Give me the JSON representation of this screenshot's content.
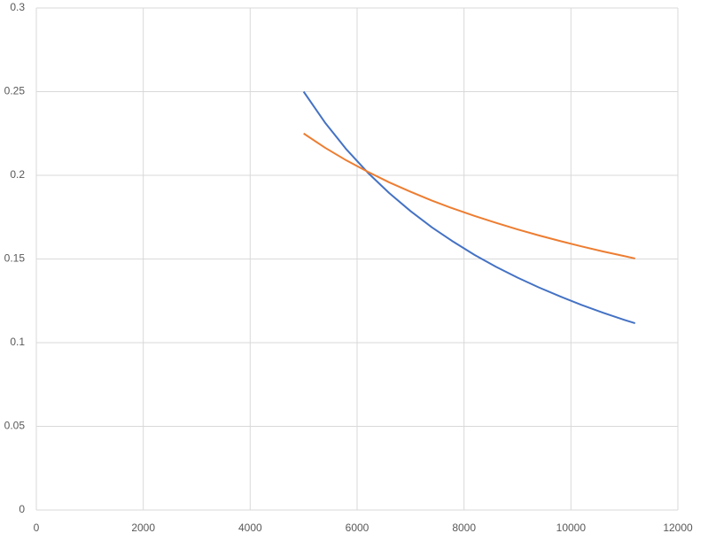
{
  "chart_data": {
    "type": "line",
    "x": [
      5000,
      5400,
      5800,
      6200,
      6600,
      7000,
      7400,
      7800,
      8200,
      8600,
      9000,
      9400,
      9800,
      10200,
      10600,
      11000,
      11200
    ],
    "series": [
      {
        "color": "#4472c4",
        "values": [
          0.25,
          0.2315,
          0.2155,
          0.2016,
          0.1894,
          0.1786,
          0.1689,
          0.1603,
          0.1524,
          0.1453,
          0.1389,
          0.133,
          0.1276,
          0.1225,
          0.1179,
          0.1136,
          0.1116
        ]
      },
      {
        "color": "#ed7d31",
        "values": [
          0.225,
          0.2165,
          0.2089,
          0.2021,
          0.1958,
          0.1902,
          0.1849,
          0.1801,
          0.1757,
          0.1716,
          0.1677,
          0.1641,
          0.1607,
          0.1575,
          0.1545,
          0.1517,
          0.1503
        ]
      }
    ],
    "xlim": [
      0,
      12000
    ],
    "xticks": [
      0,
      2000,
      4000,
      6000,
      8000,
      10000,
      12000
    ],
    "ylim": [
      0,
      0.3
    ],
    "yticks": [
      0,
      0.05,
      0.1,
      0.15,
      0.2,
      0.25,
      0.3
    ],
    "grid": true
  }
}
